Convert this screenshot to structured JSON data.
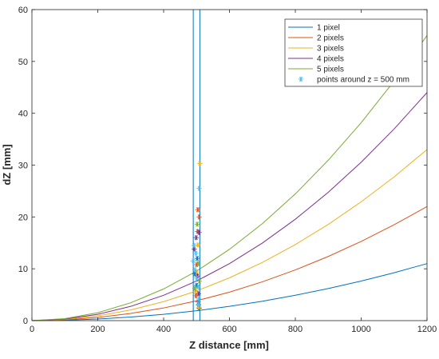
{
  "chart_data": {
    "type": "line",
    "title": "",
    "xlabel": "Z distance [mm]",
    "ylabel": "dZ [mm]",
    "xlim": [
      0,
      1200
    ],
    "ylim": [
      0,
      60
    ],
    "xticks": [
      0,
      200,
      400,
      600,
      800,
      1000,
      1200
    ],
    "yticks": [
      0,
      10,
      20,
      30,
      40,
      50,
      60
    ],
    "grid": false,
    "legend_position": "top-right",
    "series": [
      {
        "name": "1 pixel",
        "color": "#0072BD",
        "x": [
          0,
          100,
          200,
          300,
          400,
          500,
          600,
          700,
          800,
          900,
          1000,
          1100,
          1200
        ],
        "y": [
          0,
          0.08,
          0.31,
          0.69,
          1.22,
          1.91,
          2.75,
          3.74,
          4.89,
          6.19,
          7.64,
          9.24,
          11.0
        ]
      },
      {
        "name": "2 pixels",
        "color": "#D95319",
        "x": [
          0,
          100,
          200,
          300,
          400,
          500,
          600,
          700,
          800,
          900,
          1000,
          1100,
          1200
        ],
        "y": [
          0,
          0.15,
          0.61,
          1.38,
          2.44,
          3.82,
          5.5,
          7.49,
          9.78,
          12.38,
          15.28,
          18.49,
          22.0
        ]
      },
      {
        "name": "3 pixels",
        "color": "#EDB120",
        "x": [
          0,
          100,
          200,
          300,
          400,
          500,
          600,
          700,
          800,
          900,
          1000,
          1100,
          1200
        ],
        "y": [
          0,
          0.23,
          0.92,
          2.06,
          3.67,
          5.73,
          8.25,
          11.23,
          14.67,
          18.56,
          22.92,
          27.73,
          33.0
        ]
      },
      {
        "name": "4 pixels",
        "color": "#7E2F8E",
        "x": [
          0,
          100,
          200,
          300,
          400,
          500,
          600,
          700,
          800,
          900,
          1000,
          1100,
          1200
        ],
        "y": [
          0,
          0.31,
          1.22,
          2.75,
          4.89,
          7.64,
          11.0,
          14.97,
          19.56,
          24.75,
          30.56,
          36.97,
          44.0
        ]
      },
      {
        "name": "5 pixels",
        "color": "#77AC30",
        "x": [
          0,
          100,
          200,
          300,
          400,
          500,
          600,
          700,
          800,
          900,
          1000,
          1100,
          1200
        ],
        "y": [
          0,
          0.38,
          1.53,
          3.44,
          6.11,
          9.55,
          13.75,
          18.72,
          24.44,
          30.94,
          38.19,
          46.22,
          55.0
        ]
      },
      {
        "name": "points around z = 500 mm",
        "marker": "*",
        "color": "#4DBEEE",
        "x": [
          490,
          495,
          500,
          503,
          505,
          508,
          510,
          498,
          502,
          506,
          492,
          507
        ],
        "y": [
          11.5,
          9.8,
          8.2,
          7.4,
          6.5,
          25.5,
          30.3,
          13.0,
          5.0,
          3.2,
          14.5,
          4.2
        ]
      }
    ],
    "scatter_points": [
      {
        "x": 495,
        "y": 9.0,
        "color": "#0072BD"
      },
      {
        "x": 500,
        "y": 6.8,
        "color": "#0072BD"
      },
      {
        "x": 505,
        "y": 3.6,
        "color": "#0072BD"
      },
      {
        "x": 508,
        "y": 2.4,
        "color": "#0072BD"
      },
      {
        "x": 502,
        "y": 12.0,
        "color": "#0072BD"
      },
      {
        "x": 498,
        "y": 4.8,
        "color": "#D95319"
      },
      {
        "x": 503,
        "y": 17.2,
        "color": "#D95319"
      },
      {
        "x": 506,
        "y": 3.0,
        "color": "#D95319"
      },
      {
        "x": 500,
        "y": 10.8,
        "color": "#D95319"
      },
      {
        "x": 508,
        "y": 20.0,
        "color": "#D95319"
      },
      {
        "x": 504,
        "y": 21.4,
        "color": "#D95319"
      },
      {
        "x": 497,
        "y": 5.6,
        "color": "#EDB120"
      },
      {
        "x": 504,
        "y": 14.6,
        "color": "#EDB120"
      },
      {
        "x": 507,
        "y": 2.6,
        "color": "#EDB120"
      },
      {
        "x": 501,
        "y": 9.4,
        "color": "#EDB120"
      },
      {
        "x": 510,
        "y": 30.3,
        "color": "#EDB120"
      },
      {
        "x": 493,
        "y": 13.8,
        "color": "#7E2F8E"
      },
      {
        "x": 499,
        "y": 16.0,
        "color": "#7E2F8E"
      },
      {
        "x": 503,
        "y": 8.6,
        "color": "#7E2F8E"
      },
      {
        "x": 506,
        "y": 5.2,
        "color": "#7E2F8E"
      },
      {
        "x": 508,
        "y": 17.0,
        "color": "#7E2F8E"
      },
      {
        "x": 495,
        "y": 6.2,
        "color": "#77AC30"
      },
      {
        "x": 502,
        "y": 18.6,
        "color": "#77AC30"
      },
      {
        "x": 505,
        "y": 11.0,
        "color": "#77AC30"
      },
      {
        "x": 509,
        "y": 7.6,
        "color": "#77AC30"
      },
      {
        "x": 490,
        "y": 11.5,
        "color": "#4DBEEE"
      },
      {
        "x": 495,
        "y": 9.8,
        "color": "#4DBEEE"
      },
      {
        "x": 500,
        "y": 8.2,
        "color": "#4DBEEE"
      },
      {
        "x": 505,
        "y": 6.5,
        "color": "#4DBEEE"
      },
      {
        "x": 508,
        "y": 25.5,
        "color": "#4DBEEE"
      },
      {
        "x": 498,
        "y": 13.0,
        "color": "#4DBEEE"
      },
      {
        "x": 506,
        "y": 3.2,
        "color": "#4DBEEE"
      },
      {
        "x": 492,
        "y": 14.5,
        "color": "#4DBEEE"
      },
      {
        "x": 507,
        "y": 4.2,
        "color": "#4DBEEE"
      }
    ],
    "vertical_lines": [
      {
        "x": 490,
        "color": "#0072BD"
      },
      {
        "x": 510,
        "color": "#0072BD"
      }
    ]
  }
}
